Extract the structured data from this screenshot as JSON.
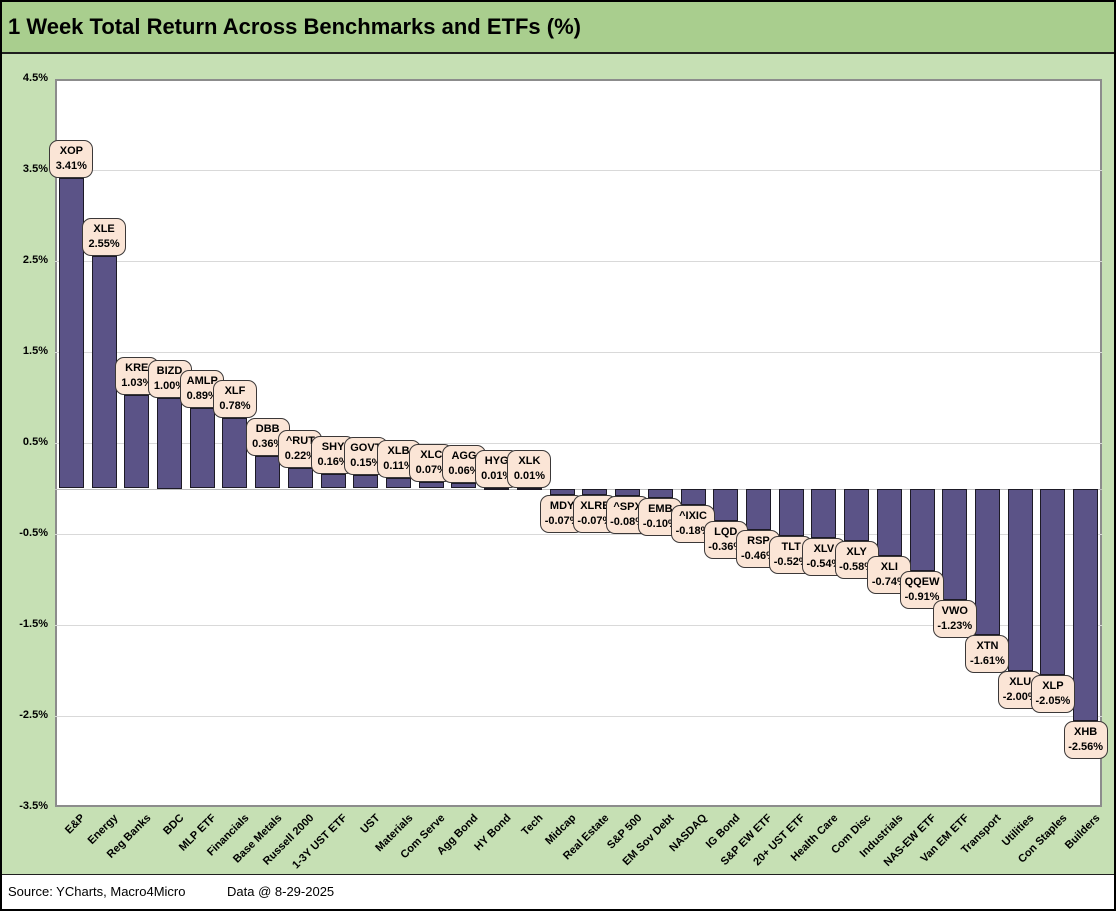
{
  "title": "1 Week Total Return Across Benchmarks and ETFs (%)",
  "footer": {
    "source": "Source: YCharts, Macro4Micro",
    "data_date": "Data @ 8-29-2025"
  },
  "colors": {
    "title_band_bg": "#A9CE8E",
    "chart_bg": "#C6E0B4",
    "plot_bg": "#FFFFFF",
    "plot_border": "#8C8C8C",
    "bar_fill": "#5B5387",
    "bar_border": "#1D1A26",
    "callout_fill": "#FBE5D6",
    "callout_border": "#3B3838",
    "gridline": "#D9D9D9",
    "zero_line": "#BFBFBF"
  },
  "chart_data": {
    "type": "bar",
    "title": "1 Week Total Return Across Benchmarks and ETFs (%)",
    "xlabel": "",
    "ylabel": "",
    "ylim": [
      -3.5,
      4.5
    ],
    "y_ticks": [
      4.5,
      3.5,
      2.5,
      1.5,
      0.5,
      -0.5,
      -1.5,
      -2.5,
      -3.5
    ],
    "y_tick_suffix": "%",
    "grid": true,
    "legend_position": "none",
    "bars": [
      {
        "category": "E&P",
        "ticker": "XOP",
        "value": 3.41
      },
      {
        "category": "Energy",
        "ticker": "XLE",
        "value": 2.55
      },
      {
        "category": "Reg Banks",
        "ticker": "KRE",
        "value": 1.03
      },
      {
        "category": "BDC",
        "ticker": "BIZD",
        "value": 1.0
      },
      {
        "category": "MLP ETF",
        "ticker": "AMLP",
        "value": 0.89
      },
      {
        "category": "Financials",
        "ticker": "XLF",
        "value": 0.78
      },
      {
        "category": "Base Metals",
        "ticker": "DBB",
        "value": 0.36
      },
      {
        "category": "Russell 2000",
        "ticker": "^RUT",
        "value": 0.22
      },
      {
        "category": "1-3Y UST ETF",
        "ticker": "SHY",
        "value": 0.16
      },
      {
        "category": "UST",
        "ticker": "GOVT",
        "value": 0.15
      },
      {
        "category": "Materials",
        "ticker": "XLB",
        "value": 0.11
      },
      {
        "category": "Com Serve",
        "ticker": "XLC",
        "value": 0.07
      },
      {
        "category": "Agg Bond",
        "ticker": "AGG",
        "value": 0.06
      },
      {
        "category": "HY Bond",
        "ticker": "HYG",
        "value": 0.01
      },
      {
        "category": "Tech",
        "ticker": "XLK",
        "value": 0.01
      },
      {
        "category": "Midcap",
        "ticker": "MDY",
        "value": -0.07
      },
      {
        "category": "Real Estate",
        "ticker": "XLRE",
        "value": -0.07
      },
      {
        "category": "S&P 500",
        "ticker": "^SPX",
        "value": -0.08
      },
      {
        "category": "EM Sov Debt",
        "ticker": "EMB",
        "value": -0.1
      },
      {
        "category": "NASDAQ",
        "ticker": "^IXIC",
        "value": -0.18
      },
      {
        "category": "IG Bond",
        "ticker": "LQD",
        "value": -0.36
      },
      {
        "category": "S&P EW ETF",
        "ticker": "RSP",
        "value": -0.46
      },
      {
        "category": "20+ UST ETF",
        "ticker": "TLT",
        "value": -0.52
      },
      {
        "category": "Health Care",
        "ticker": "XLV",
        "value": -0.54
      },
      {
        "category": "Com Disc",
        "ticker": "XLY",
        "value": -0.58
      },
      {
        "category": "Industrials",
        "ticker": "XLI",
        "value": -0.74
      },
      {
        "category": "NAS-EW ETF",
        "ticker": "QQEW",
        "value": -0.91
      },
      {
        "category": "Van EM ETF",
        "ticker": "VWO",
        "value": -1.23
      },
      {
        "category": "Transport",
        "ticker": "XTN",
        "value": -1.61
      },
      {
        "category": "Utilities",
        "ticker": "XLU",
        "value": -2.0
      },
      {
        "category": "Con Staples",
        "ticker": "XLP",
        "value": -2.05
      },
      {
        "category": "Builders",
        "ticker": "XHB",
        "value": -2.56
      }
    ]
  }
}
